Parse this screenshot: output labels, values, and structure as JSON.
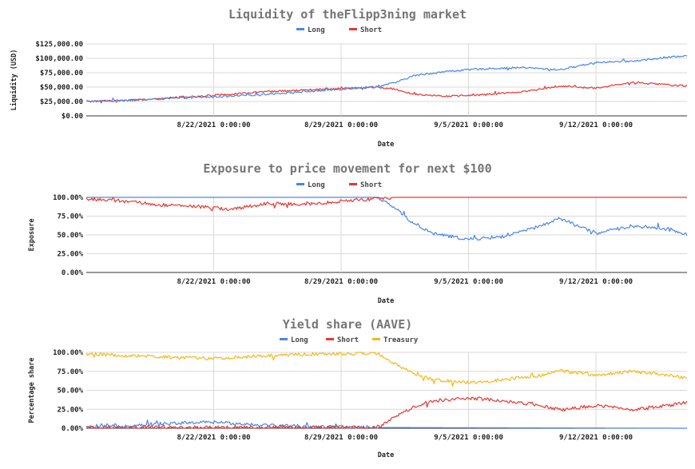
{
  "colors": {
    "long": "#4a86e8",
    "short": "#e53935",
    "treasury": "#f6b71c"
  },
  "chart_data": [
    {
      "type": "line",
      "title": "Liquidity of theFlipp3ning market",
      "xlabel": "Date",
      "ylabel": "Liquidity (USD)",
      "x_range": [
        "2021-08-15",
        "2021-09-17"
      ],
      "x_ticks": [
        "8/22/2021 0:00:00",
        "8/29/2021 0:00:00",
        "9/5/2021 0:00:00",
        "9/12/2021 0:00:00"
      ],
      "y_ticks": [
        "$0.00",
        "$25,000.00",
        "$50,000.00",
        "$75,000.00",
        "$100,000.00",
        "$125,000.00"
      ],
      "ylim": [
        0,
        125000
      ],
      "legend_position": "top-center",
      "grid": true,
      "series": [
        {
          "name": "Long",
          "color": "#4a86e8",
          "x": [
            "2021-08-15",
            "2021-08-18",
            "2021-08-21",
            "2021-08-23",
            "2021-08-25",
            "2021-08-28",
            "2021-08-31",
            "2021-09-01",
            "2021-09-02",
            "2021-09-04",
            "2021-09-06",
            "2021-09-08",
            "2021-09-10",
            "2021-09-12",
            "2021-09-14",
            "2021-09-17"
          ],
          "y": [
            25000,
            28000,
            32000,
            34000,
            38000,
            44000,
            51000,
            58000,
            70000,
            78000,
            82000,
            84000,
            80000,
            93000,
            95000,
            105000
          ]
        },
        {
          "name": "Short",
          "color": "#e53935",
          "x": [
            "2021-08-15",
            "2021-08-18",
            "2021-08-21",
            "2021-08-23",
            "2021-08-25",
            "2021-08-28",
            "2021-08-31",
            "2021-09-01",
            "2021-09-02",
            "2021-09-04",
            "2021-09-06",
            "2021-09-08",
            "2021-09-10",
            "2021-09-12",
            "2021-09-14",
            "2021-09-17"
          ],
          "y": [
            25000,
            28000,
            34000,
            38000,
            42000,
            46000,
            50000,
            46000,
            38000,
            34000,
            37000,
            42000,
            52000,
            48000,
            58000,
            52000
          ]
        }
      ]
    },
    {
      "type": "line",
      "title": "Exposure to price movement for next $100",
      "xlabel": "Date",
      "ylabel": "Exposure",
      "x_range": [
        "2021-08-15",
        "2021-09-17"
      ],
      "x_ticks": [
        "8/22/2021 0:00:00",
        "8/29/2021 0:00:00",
        "9/5/2021 0:00:00",
        "9/12/2021 0:00:00"
      ],
      "y_ticks": [
        "0.00%",
        "25.00%",
        "50.00%",
        "75.00%",
        "100.00%"
      ],
      "ylim": [
        0,
        100
      ],
      "legend_position": "top-center",
      "grid": true,
      "series": [
        {
          "name": "Long",
          "color": "#4a86e8",
          "x": [
            "2021-08-15",
            "2021-08-31",
            "2021-09-01",
            "2021-09-02",
            "2021-09-03",
            "2021-09-05",
            "2021-09-07",
            "2021-09-09",
            "2021-09-10",
            "2021-09-12",
            "2021-09-14",
            "2021-09-16",
            "2021-09-17"
          ],
          "y": [
            100,
            100,
            85,
            65,
            52,
            44,
            48,
            62,
            72,
            52,
            62,
            58,
            50
          ]
        },
        {
          "name": "Short",
          "color": "#e53935",
          "x": [
            "2021-08-15",
            "2021-08-17",
            "2021-08-19",
            "2021-08-21",
            "2021-08-23",
            "2021-08-25",
            "2021-08-27",
            "2021-08-29",
            "2021-08-31",
            "2021-09-01",
            "2021-09-17"
          ],
          "y": [
            98,
            95,
            90,
            88,
            84,
            92,
            90,
            95,
            98,
            100,
            100
          ]
        }
      ]
    },
    {
      "type": "line",
      "title": "Yield share (AAVE)",
      "xlabel": "Date",
      "ylabel": "Percentage share",
      "x_range": [
        "2021-08-15",
        "2021-09-17"
      ],
      "x_ticks": [
        "8/22/2021 0:00:00",
        "8/29/2021 0:00:00",
        "9/5/2021 0:00:00",
        "9/12/2021 0:00:00"
      ],
      "y_ticks": [
        "0.00%",
        "25.00%",
        "50.00%",
        "75.00%",
        "100.00%"
      ],
      "ylim": [
        0,
        100
      ],
      "legend_position": "top-center",
      "grid": true,
      "series": [
        {
          "name": "Long",
          "color": "#4a86e8",
          "x": [
            "2021-08-15",
            "2021-08-17",
            "2021-08-19",
            "2021-08-22",
            "2021-08-25",
            "2021-08-28",
            "2021-08-31",
            "2021-09-17"
          ],
          "y": [
            1,
            3,
            6,
            8,
            4,
            2,
            1,
            0
          ]
        },
        {
          "name": "Short",
          "color": "#e53935",
          "x": [
            "2021-08-15",
            "2021-08-31",
            "2021-09-01",
            "2021-09-02",
            "2021-09-03",
            "2021-09-05",
            "2021-09-07",
            "2021-09-09",
            "2021-09-10",
            "2021-09-12",
            "2021-09-14",
            "2021-09-16",
            "2021-09-17"
          ],
          "y": [
            1,
            1,
            15,
            28,
            36,
            40,
            36,
            30,
            24,
            30,
            25,
            30,
            34
          ]
        },
        {
          "name": "Treasury",
          "color": "#f6b71c",
          "x": [
            "2021-08-15",
            "2021-08-17",
            "2021-08-19",
            "2021-08-22",
            "2021-08-25",
            "2021-08-28",
            "2021-08-31",
            "2021-09-01",
            "2021-09-02",
            "2021-09-03",
            "2021-09-05",
            "2021-09-07",
            "2021-09-09",
            "2021-09-10",
            "2021-09-12",
            "2021-09-14",
            "2021-09-16",
            "2021-09-17"
          ],
          "y": [
            98,
            96,
            94,
            92,
            96,
            98,
            99,
            85,
            72,
            64,
            60,
            64,
            70,
            76,
            70,
            75,
            70,
            66
          ]
        }
      ]
    }
  ]
}
